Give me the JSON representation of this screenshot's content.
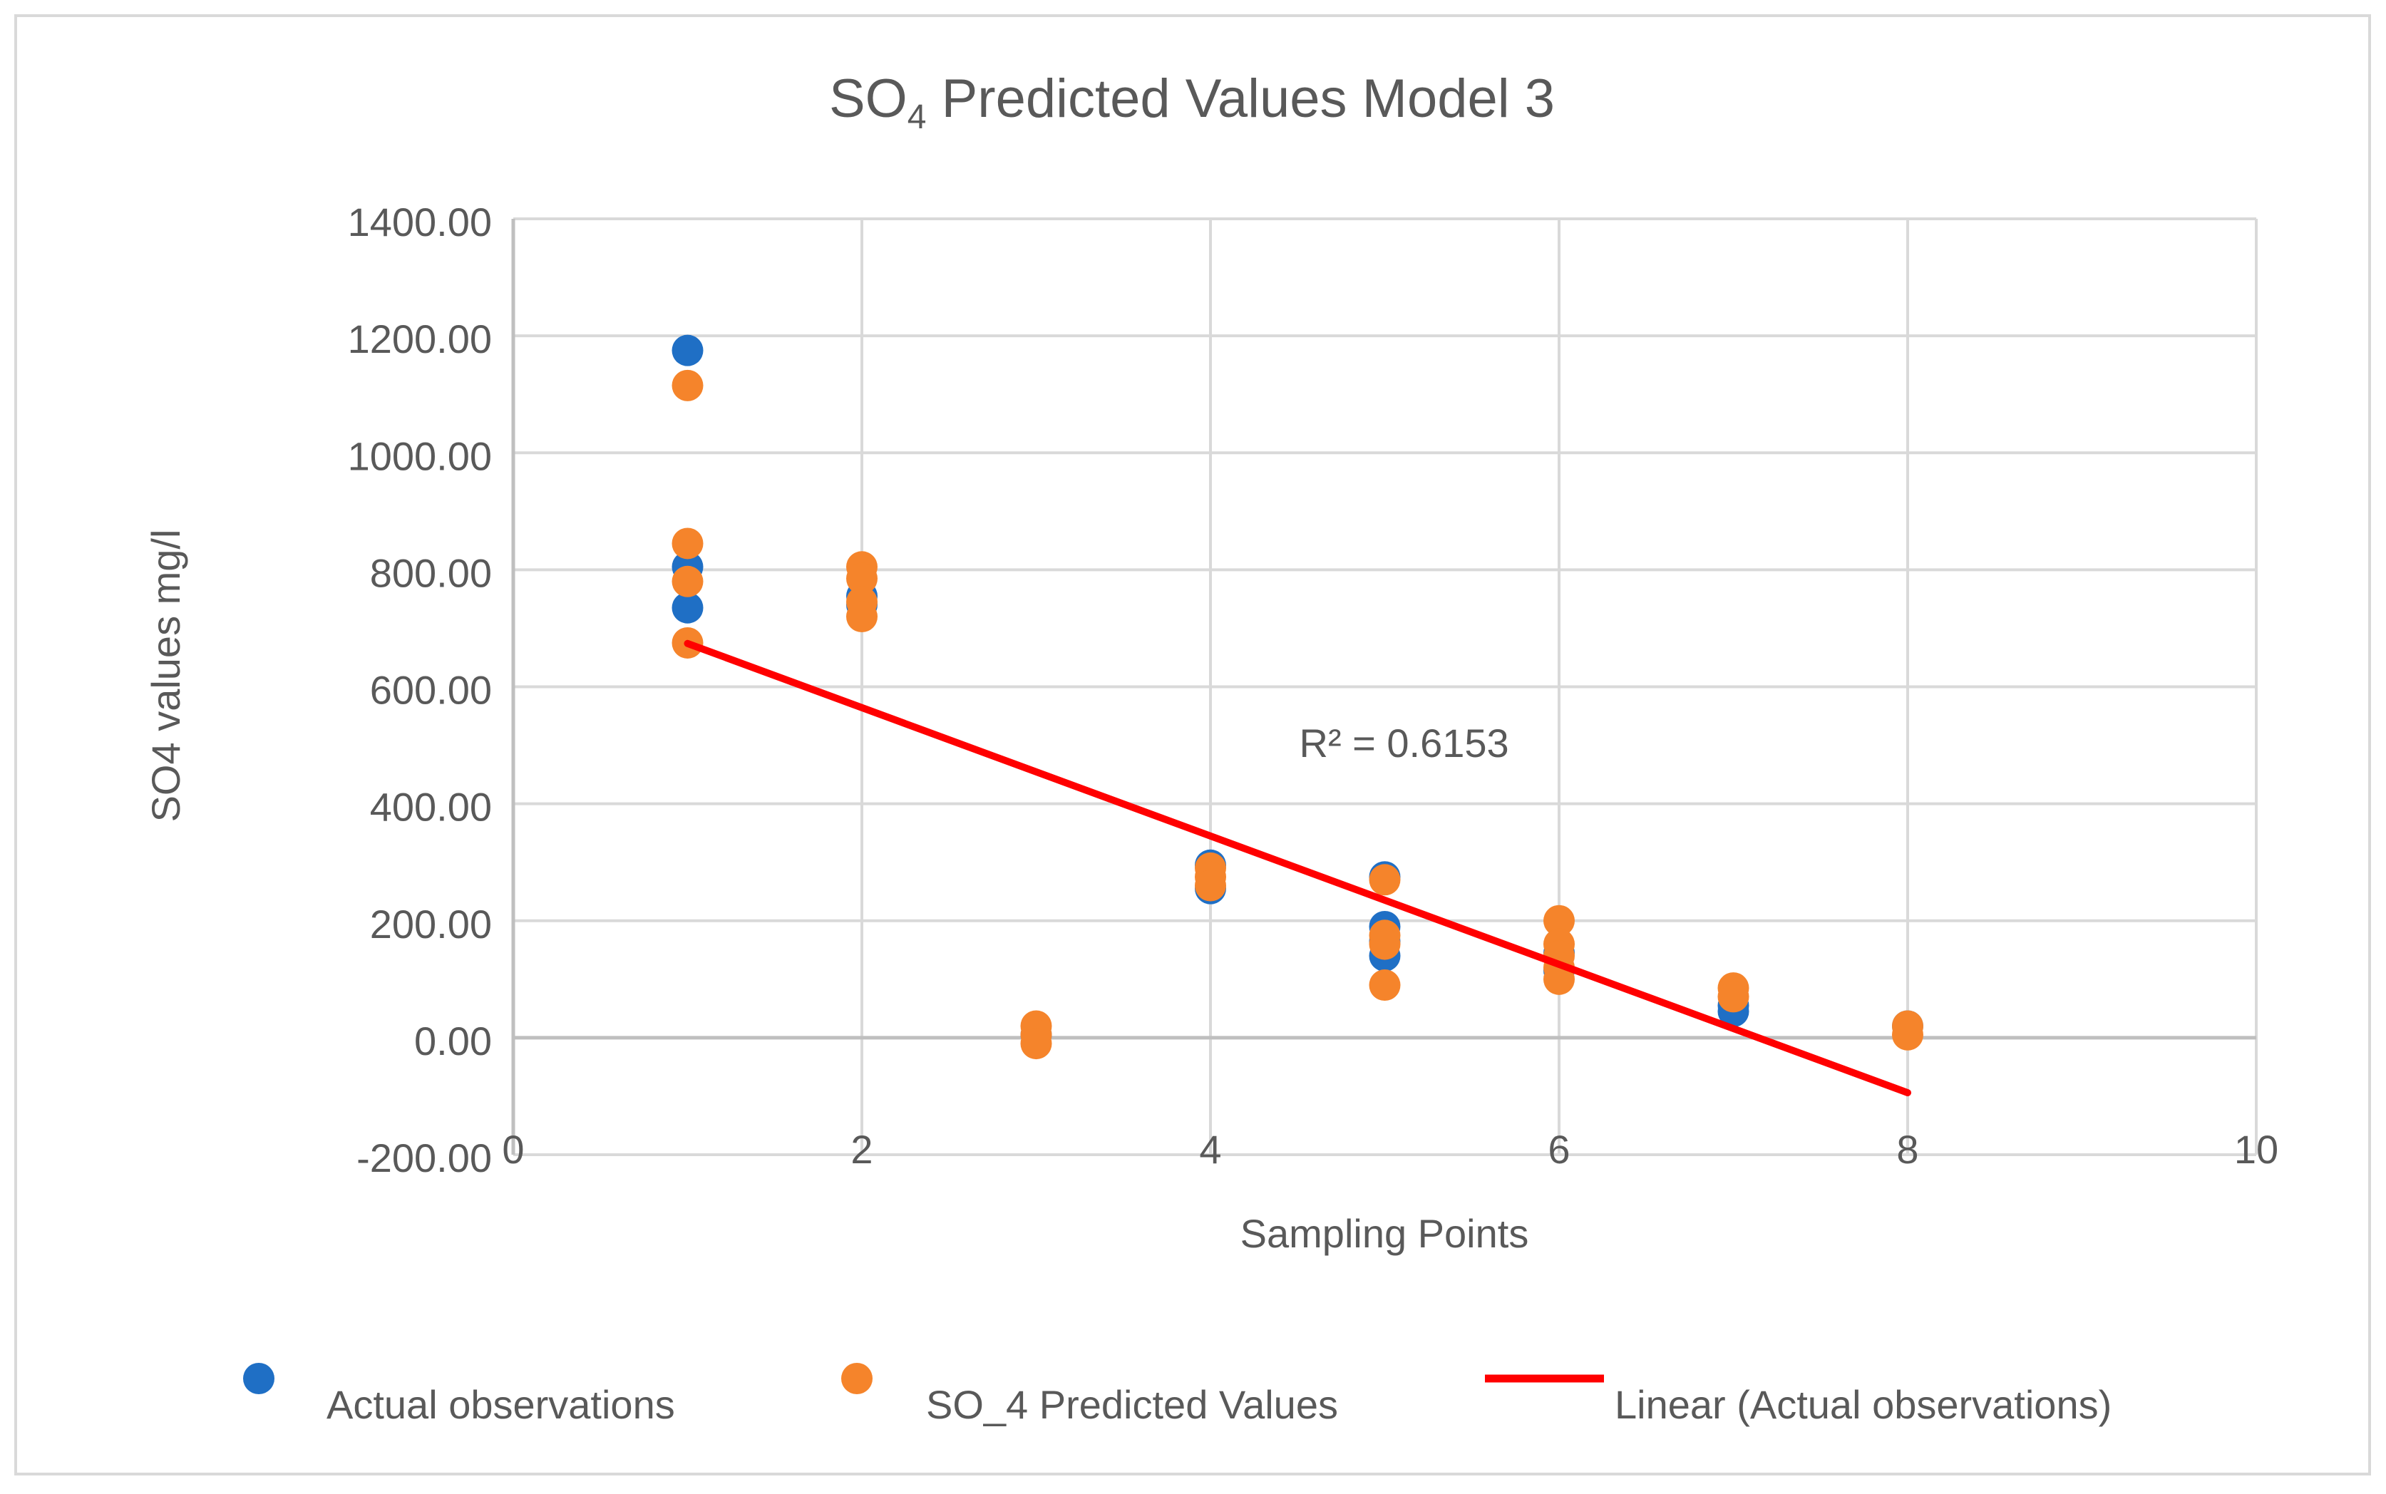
{
  "chart_data": {
    "type": "scatter",
    "title_main": "SO",
    "title_sub": "4",
    "title_rest": " Predicted Values Model 3",
    "xlabel": "Sampling Points",
    "ylabel": "SO4 values mg/l",
    "xlim": [
      0,
      10
    ],
    "ylim": [
      -200,
      1400
    ],
    "x_ticks": [
      0,
      2,
      4,
      6,
      8,
      10
    ],
    "x_tick_labels": [
      "0",
      "2",
      "4",
      "6",
      "8",
      "10"
    ],
    "y_ticks": [
      -200,
      0,
      200,
      400,
      600,
      800,
      1000,
      1200,
      1400
    ],
    "y_tick_labels": [
      "-200.00",
      "0.00",
      "200.00",
      "400.00",
      "600.00",
      "800.00",
      "1000.00",
      "1200.00",
      "1400.00"
    ],
    "grid": true,
    "legend_position": "bottom",
    "series": [
      {
        "name": "Actual observations",
        "color": "#1f6fc5",
        "points": [
          [
            1,
            1175
          ],
          [
            1,
            805
          ],
          [
            1,
            735
          ],
          [
            2,
            755
          ],
          [
            2,
            740
          ],
          [
            4,
            295
          ],
          [
            4,
            255
          ],
          [
            5,
            275
          ],
          [
            5,
            190
          ],
          [
            5,
            165
          ],
          [
            5,
            140
          ],
          [
            6,
            145
          ],
          [
            6,
            115
          ],
          [
            7,
            55
          ],
          [
            7,
            45
          ],
          [
            8,
            20
          ],
          [
            3,
            5
          ]
        ]
      },
      {
        "name": "SO_4 Predicted  Values",
        "color": "#f5842b",
        "points": [
          [
            1,
            1115
          ],
          [
            1,
            845
          ],
          [
            1,
            780
          ],
          [
            1,
            675
          ],
          [
            2,
            805
          ],
          [
            2,
            785
          ],
          [
            2,
            745
          ],
          [
            2,
            720
          ],
          [
            3,
            20
          ],
          [
            3,
            5
          ],
          [
            3,
            -10
          ],
          [
            4,
            290
          ],
          [
            4,
            275
          ],
          [
            4,
            260
          ],
          [
            5,
            270
          ],
          [
            5,
            175
          ],
          [
            5,
            160
          ],
          [
            5,
            90
          ],
          [
            6,
            200
          ],
          [
            6,
            160
          ],
          [
            6,
            140
          ],
          [
            6,
            120
          ],
          [
            6,
            100
          ],
          [
            7,
            85
          ],
          [
            7,
            70
          ],
          [
            8,
            20
          ],
          [
            8,
            5
          ]
        ]
      }
    ],
    "trendline": {
      "name": "Linear (Actual observations)",
      "color": "#ff0000",
      "x": [
        1,
        8
      ],
      "y": [
        674,
        -94
      ],
      "r_squared_label": "R² = 0.6153",
      "r_squared_at": [
        5,
        480
      ]
    }
  }
}
